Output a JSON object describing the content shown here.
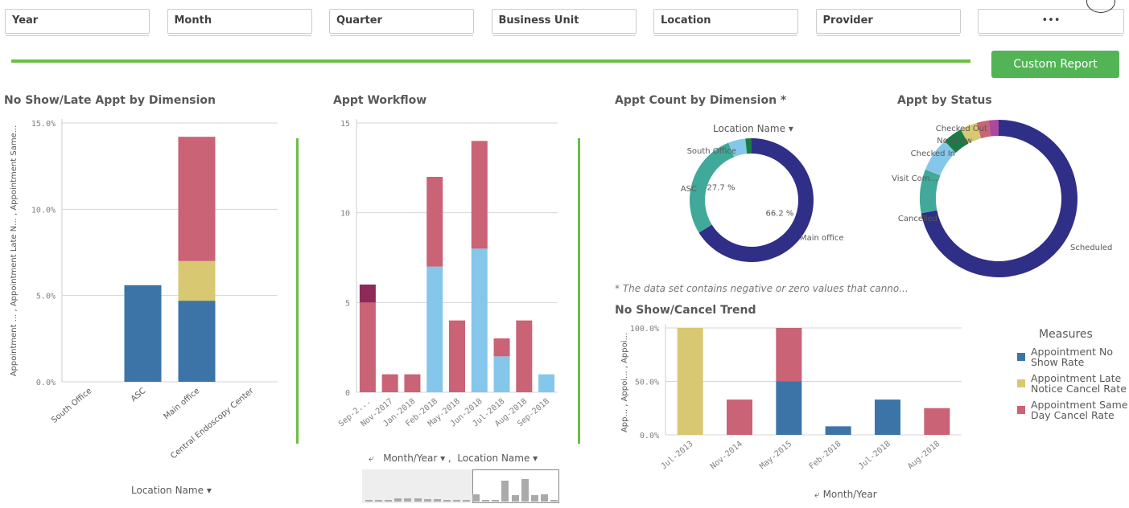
{
  "filters": [
    "Year",
    "Month",
    "Quarter",
    "Business Unit",
    "Location",
    "Provider"
  ],
  "more_label": "•••",
  "custom_report": "Custom Report",
  "colors": {
    "accent": "#6cbf45",
    "button": "#52b455",
    "blue": "#3d74a8",
    "yellow": "#d8c871",
    "red": "#c96375",
    "light_blue": "#85c7ea",
    "purple": "#8e2a5a",
    "navy": "#2f2f88",
    "teal": "#41a999",
    "green": "#1b7b45",
    "magenta": "#a94a9e"
  },
  "panel1": {
    "title": "No Show/Late Appt by Dimension",
    "ylabel": "Appointment ... ,  Appointment Late N... ,  Appointment Same...",
    "dimension": "Location Name"
  },
  "panel2": {
    "title": "Appt Workflow",
    "dim1": "Month/Year",
    "sep": ",",
    "dim2": "Location Name"
  },
  "panel3": {
    "title": "Appt Count by Dimension *",
    "dimension": "Location Name",
    "note": "* The data set contains negative or zero values that canno..."
  },
  "panel4": {
    "title": "Appt by Status"
  },
  "panel5": {
    "title": "No Show/Cancel Trend",
    "ylabel": "App... ,  Appoi... ,  Appoi...",
    "dimension": "Month/Year",
    "legend_title": "Measures"
  },
  "chart_data": [
    {
      "type": "bar",
      "stacked": true,
      "categories": [
        "South Office",
        "ASC",
        "Main office",
        "Central Endoscopy Center"
      ],
      "ylim": [
        0,
        15
      ],
      "yticks": [
        "0.0%",
        "5.0%",
        "10.0%",
        "15.0%"
      ],
      "grid": true,
      "series": [
        {
          "name": "Appointment No Show Rate",
          "color": "#3d74a8",
          "values": [
            0,
            5.6,
            4.7,
            0
          ]
        },
        {
          "name": "Appointment Late Notice Cancel Rate",
          "color": "#d8c871",
          "values": [
            0,
            0,
            2.3,
            0
          ]
        },
        {
          "name": "Appointment Same Day Cancel Rate",
          "color": "#c96375",
          "values": [
            0,
            0,
            7.2,
            0
          ]
        }
      ]
    },
    {
      "type": "bar",
      "stacked": true,
      "categories": [
        "Sep-2...",
        "Nov-2017",
        "Jan-2018",
        "Feb-2018",
        "May-2018",
        "Jun-2018",
        "Jul-2018",
        "Aug-2018",
        "Sep-2018"
      ],
      "ylim": [
        0,
        15
      ],
      "yticks": [
        "0",
        "5",
        "10",
        "15"
      ],
      "grid": true,
      "series": [
        {
          "color": "#85c7ea",
          "values": [
            0,
            0,
            0,
            7,
            0,
            8,
            2,
            0,
            1
          ]
        },
        {
          "color": "#c96375",
          "values": [
            5,
            1,
            1,
            5,
            4,
            6,
            1,
            4,
            0
          ]
        },
        {
          "color": "#8e2a5a",
          "values": [
            1,
            0,
            0,
            0,
            0,
            0,
            0,
            0,
            0
          ]
        }
      ]
    },
    {
      "type": "pie",
      "donut": true,
      "slices": [
        {
          "label": "Main office",
          "value": 66.2,
          "pct_label": "66.2 %",
          "color": "#2f2f88"
        },
        {
          "label": "ASC",
          "value": 27.7,
          "pct_label": "27.7 %",
          "color": "#41a999"
        },
        {
          "label": "South Office",
          "value": 4.5,
          "color": "#85c7ea"
        },
        {
          "label": "",
          "value": 1.6,
          "color": "#1b7b45"
        }
      ]
    },
    {
      "type": "pie",
      "donut": true,
      "slices": [
        {
          "label": "Scheduled",
          "value": 72,
          "color": "#2f2f88"
        },
        {
          "label": "Cancelled",
          "value": 9,
          "color": "#41a999"
        },
        {
          "label": "Visit Com...",
          "value": 7,
          "color": "#85c7ea"
        },
        {
          "label": "Checked In",
          "value": 4,
          "color": "#1b7b45"
        },
        {
          "label": "No Show",
          "value": 3.5,
          "color": "#d8c871"
        },
        {
          "label": "Checked Out",
          "value": 2.5,
          "color": "#c96375"
        },
        {
          "label": "",
          "value": 2,
          "color": "#a94a9e"
        }
      ]
    },
    {
      "type": "bar",
      "stacked": true,
      "categories": [
        "Jul-2013",
        "Nov-2014",
        "May-2015",
        "Feb-2018",
        "Jul-2018",
        "Aug-2018"
      ],
      "ylim": [
        0,
        100
      ],
      "yticks": [
        "0.0%",
        "50.0%",
        "100.0%"
      ],
      "grid": true,
      "legend": "right",
      "series": [
        {
          "name": "Appointment No Show Rate",
          "color": "#3d74a8",
          "values": [
            0,
            0,
            50,
            8,
            33,
            0
          ]
        },
        {
          "name": "Appointment Late Notice Cancel Rate",
          "color": "#d8c871",
          "values": [
            100,
            0,
            0,
            0,
            0,
            0
          ]
        },
        {
          "name": "Appointment Same Day Cancel Rate",
          "color": "#c96375",
          "values": [
            0,
            33,
            50,
            0,
            0,
            25
          ]
        }
      ]
    }
  ]
}
